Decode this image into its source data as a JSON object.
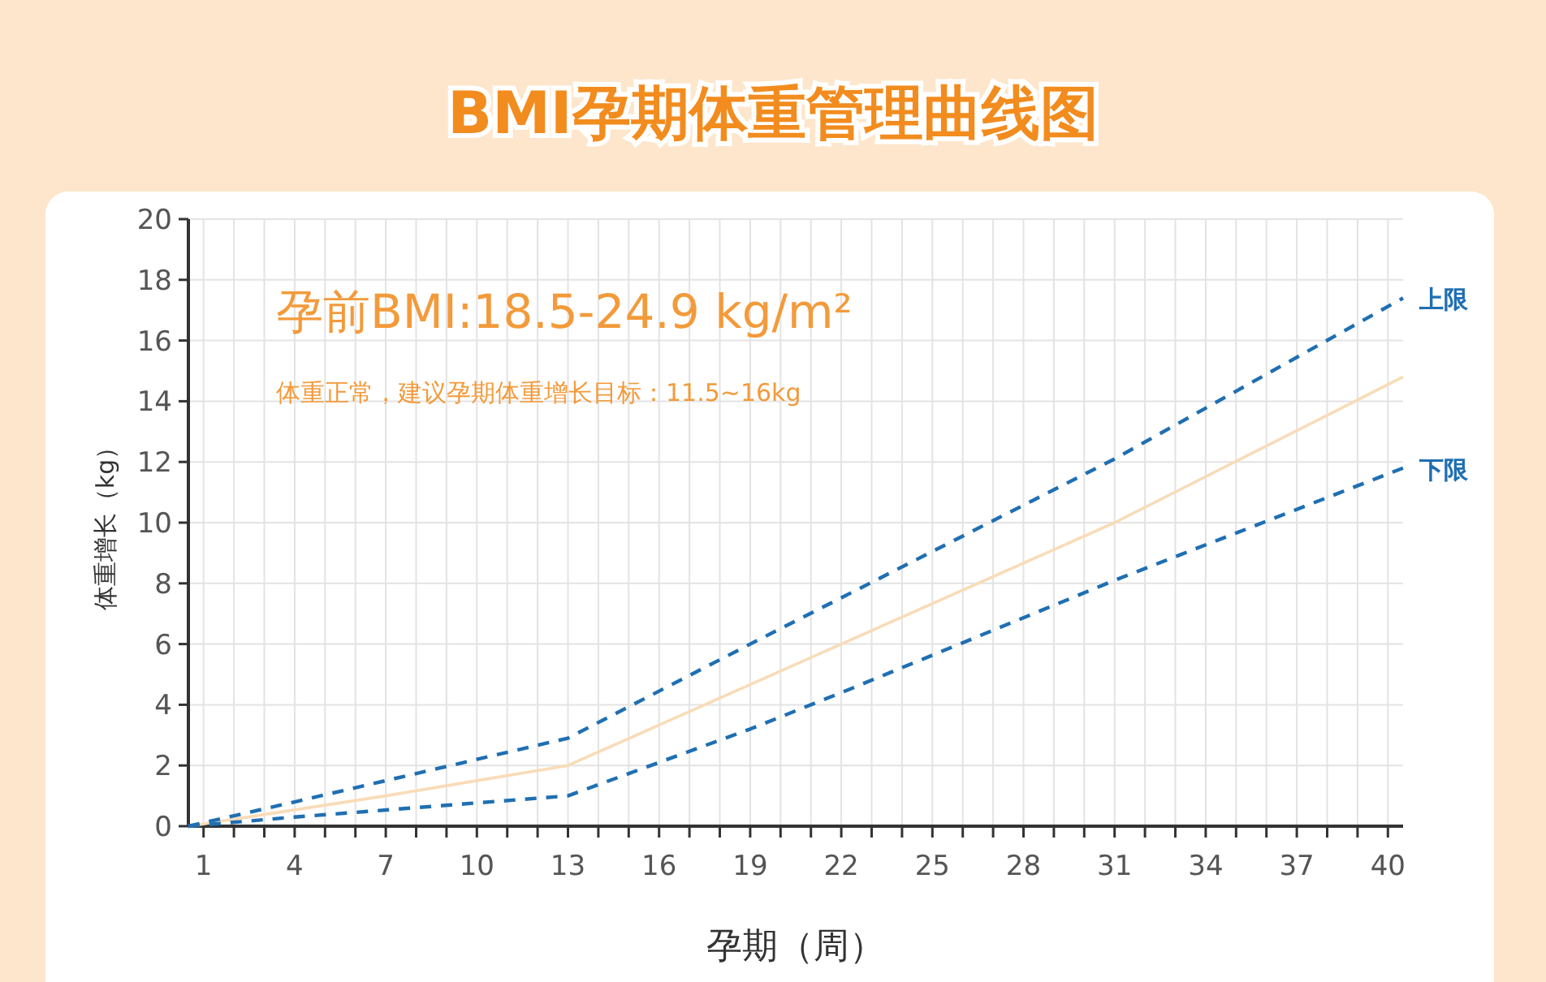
{
  "chart_data": {
    "type": "line",
    "title": "BMI孕期体重管理曲线图",
    "xlabel": "孕期（周）",
    "ylabel": "体重增长（kg）",
    "annotations": [
      "孕前BMI:18.5-24.9 kg/m²",
      "体重正常，建议孕期体重增长目标：11.5~16kg"
    ],
    "xlim": [
      0.5,
      40.5
    ],
    "ylim": [
      0,
      20
    ],
    "yticks": [
      0,
      2,
      4,
      6,
      8,
      10,
      12,
      14,
      16,
      18,
      20
    ],
    "xticks": [
      1,
      {
        "value": 2,
        "label": null
      },
      {
        "value": 3,
        "label": null
      },
      4,
      {
        "value": 5,
        "label": null
      },
      {
        "value": 6,
        "label": null
      },
      7,
      {
        "value": 8,
        "label": null
      },
      {
        "value": 9,
        "label": null
      },
      10,
      {
        "value": 11,
        "label": null
      },
      {
        "value": 12,
        "label": null
      },
      13,
      {
        "value": 14,
        "label": null
      },
      {
        "value": 15,
        "label": null
      },
      16,
      {
        "value": 17,
        "label": null
      },
      {
        "value": 18,
        "label": null
      },
      19,
      {
        "value": 20,
        "label": null
      },
      {
        "value": 21,
        "label": null
      },
      22,
      {
        "value": 23,
        "label": null
      },
      {
        "value": 24,
        "label": null
      },
      25,
      {
        "value": 26,
        "label": null
      },
      {
        "value": 27,
        "label": null
      },
      28,
      {
        "value": 29,
        "label": null
      },
      {
        "value": 30,
        "label": null
      },
      31,
      {
        "value": 32,
        "label": null
      },
      {
        "value": 33,
        "label": null
      },
      34,
      {
        "value": 35,
        "label": null
      },
      {
        "value": 36,
        "label": null
      },
      37,
      {
        "value": 38,
        "label": null
      },
      {
        "value": 39,
        "label": null
      },
      40
    ],
    "grid": true,
    "series": [
      {
        "color": "#f8dcb8",
        "line_style": "solid",
        "x": [
          0.5,
          7,
          10,
          13,
          22,
          31,
          40.5
        ],
        "values": [
          0,
          1.0,
          1.5,
          2.0,
          6.0,
          10.0,
          14.8
        ]
      },
      {
        "name": "上限",
        "color": "#1f6fb2",
        "line_style": "dashed",
        "x": [
          0.5,
          4,
          7,
          10,
          13,
          19,
          31,
          40.5
        ],
        "values": [
          0,
          0.8,
          1.5,
          2.2,
          2.9,
          6.0,
          12.1,
          17.4
        ]
      },
      {
        "name": "下限",
        "color": "#1f6fb2",
        "line_style": "dashed",
        "x": [
          0.5,
          4,
          13,
          19,
          22,
          31,
          40.5
        ],
        "values": [
          0,
          0.3,
          1.0,
          3.2,
          4.4,
          8.1,
          11.8
        ]
      }
    ]
  }
}
